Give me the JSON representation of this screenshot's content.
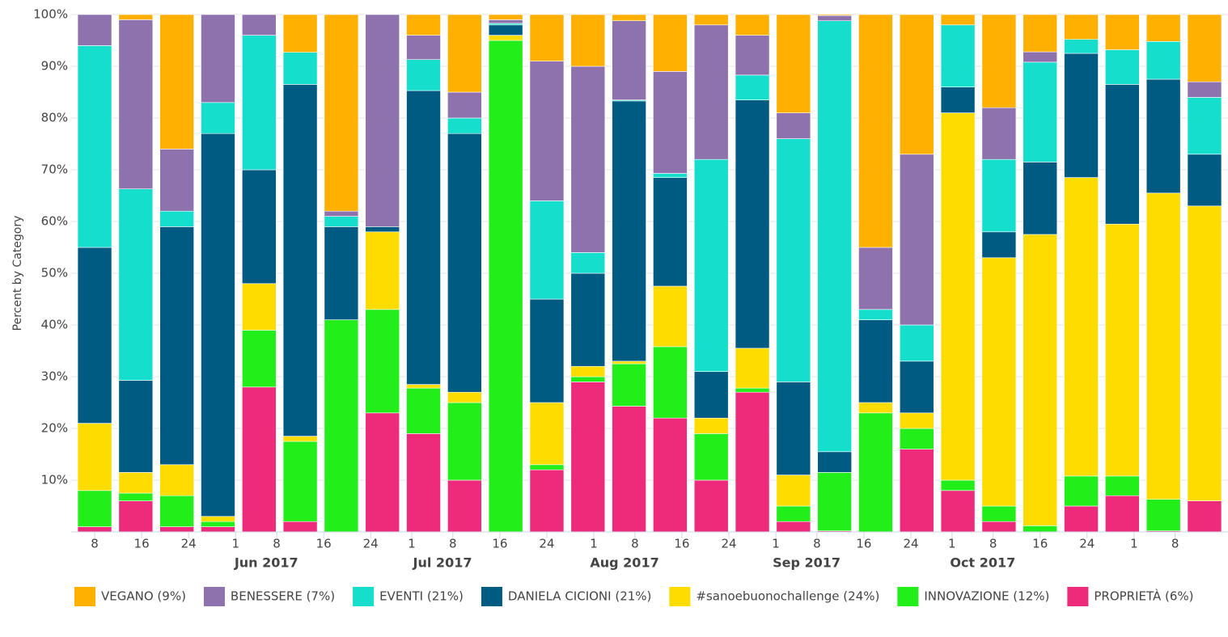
{
  "chart_data": {
    "type": "stacked_bar_percent",
    "y_label": "Percent by Category",
    "x": [
      "2017-05-08",
      "2017-05-15",
      "2017-05-22",
      "2017-05-29",
      "2017-06-05",
      "2017-06-12",
      "2017-06-19",
      "2017-06-26",
      "2017-07-03",
      "2017-07-10",
      "2017-07-17",
      "2017-07-24",
      "2017-07-31",
      "2017-08-07",
      "2017-08-14",
      "2017-08-21",
      "2017-08-28",
      "2017-09-04",
      "2017-09-11",
      "2017-09-18",
      "2017-09-25",
      "2017-10-02",
      "2017-10-09",
      "2017-10-16",
      "2017-10-23",
      "2017-10-30",
      "2017-11-06",
      "2017-11-13"
    ],
    "xlim": [
      "2017-05-04",
      "2017-11-17"
    ],
    "xticks": [
      {
        "value": "2017-05-08",
        "label": "8"
      },
      {
        "value": "2017-05-16",
        "label": "16"
      },
      {
        "value": "2017-05-24",
        "label": "24"
      },
      {
        "value": "2017-06-01",
        "label": "1"
      },
      {
        "value": "2017-06-08",
        "label": "8"
      },
      {
        "value": "2017-06-16",
        "label": "16"
      },
      {
        "value": "2017-06-24",
        "label": "24"
      },
      {
        "value": "2017-07-01",
        "label": "1"
      },
      {
        "value": "2017-07-08",
        "label": "8"
      },
      {
        "value": "2017-07-16",
        "label": "16"
      },
      {
        "value": "2017-07-24",
        "label": "24"
      },
      {
        "value": "2017-08-01",
        "label": "1"
      },
      {
        "value": "2017-08-08",
        "label": "8"
      },
      {
        "value": "2017-08-16",
        "label": "16"
      },
      {
        "value": "2017-08-24",
        "label": "24"
      },
      {
        "value": "2017-09-01",
        "label": "1"
      },
      {
        "value": "2017-09-08",
        "label": "8"
      },
      {
        "value": "2017-09-16",
        "label": "16"
      },
      {
        "value": "2017-09-24",
        "label": "24"
      },
      {
        "value": "2017-10-01",
        "label": "1"
      },
      {
        "value": "2017-10-08",
        "label": "8"
      },
      {
        "value": "2017-10-16",
        "label": "16"
      },
      {
        "value": "2017-10-24",
        "label": "24"
      },
      {
        "value": "2017-11-01",
        "label": "1"
      },
      {
        "value": "2017-11-08",
        "label": "8"
      }
    ],
    "month_ticks": [
      {
        "value": "2017-06-01",
        "label": "Jun 2017"
      },
      {
        "value": "2017-07-01",
        "label": "Jul 2017"
      },
      {
        "value": "2017-08-01",
        "label": "Aug 2017"
      },
      {
        "value": "2017-09-01",
        "label": "Sep 2017"
      },
      {
        "value": "2017-10-01",
        "label": "Oct 2017"
      }
    ],
    "ylim": [
      0,
      100
    ],
    "yticks": [
      {
        "value": 10,
        "label": "10%"
      },
      {
        "value": 20,
        "label": "20%"
      },
      {
        "value": 30,
        "label": "30%"
      },
      {
        "value": 40,
        "label": "40%"
      },
      {
        "value": 50,
        "label": "50%"
      },
      {
        "value": 60,
        "label": "60%"
      },
      {
        "value": 70,
        "label": "70%"
      },
      {
        "value": 80,
        "label": "80%"
      },
      {
        "value": 90,
        "label": "90%"
      },
      {
        "value": 100,
        "label": "100%"
      }
    ],
    "grid": true,
    "legend": "bottom",
    "series": [
      {
        "name": "VEGANO (9%)",
        "color": "#ffb000",
        "values": [
          0,
          1,
          26,
          0,
          0,
          7.3,
          38,
          0,
          4,
          15,
          1,
          9,
          10,
          1.2,
          11,
          2,
          4,
          19,
          0.2,
          45,
          27,
          2,
          18,
          7.2,
          4.8,
          6.8,
          5.2,
          13
        ]
      },
      {
        "name": "BENESSERE (7%)",
        "color": "#8e72ad",
        "values": [
          6,
          32.7,
          12,
          17,
          4,
          0,
          1,
          41,
          4.7,
          5,
          0.7,
          27,
          36,
          15.3,
          19.7,
          26,
          7.7,
          5,
          1,
          12,
          33,
          0,
          10,
          2,
          0,
          0,
          0,
          3
        ]
      },
      {
        "name": "EVENTI (21%)",
        "color": "#15dfcc",
        "values": [
          39,
          37,
          3,
          6,
          26,
          6.2,
          2,
          0,
          6,
          3,
          0.3,
          19,
          4,
          0.2,
          0.8,
          41,
          4.8,
          47,
          83.3,
          2,
          7,
          12,
          14,
          19.3,
          2.7,
          6.7,
          7.3,
          11
        ]
      },
      {
        "name": "DANIELA CICIONI (21%)",
        "color": "#005b82",
        "values": [
          34,
          17.8,
          46,
          74,
          22,
          68,
          18,
          1,
          56.8,
          50,
          2,
          20,
          18,
          50.3,
          21,
          9,
          48,
          18,
          4,
          16,
          10,
          5,
          5,
          14,
          24,
          27,
          22,
          10
        ]
      },
      {
        "name": "#sanoebuonochallenge (24%)",
        "color": "#ffdc00",
        "values": [
          13,
          4,
          6,
          1,
          9,
          1,
          0,
          15,
          0.7,
          2,
          1,
          12,
          2,
          0.5,
          11.7,
          3,
          7.7,
          6,
          0,
          2,
          3,
          71,
          48,
          56.3,
          57.7,
          48.7,
          59.2,
          57
        ]
      },
      {
        "name": "INNOVAZIONE (12%)",
        "color": "#22ee1a",
        "values": [
          7,
          1.5,
          6,
          1,
          11,
          15.5,
          41,
          20,
          8.8,
          15,
          95,
          1,
          1,
          8.2,
          13.8,
          9,
          0.8,
          3,
          11.3,
          23,
          4,
          2,
          3,
          1.2,
          5.8,
          3.8,
          6.1,
          0
        ]
      },
      {
        "name": "PROPRIETÀ (6%)",
        "color": "#ee2a7b",
        "values": [
          1,
          6,
          1,
          1,
          28,
          2,
          0,
          23,
          19,
          10,
          0,
          12,
          29,
          24.3,
          22,
          10,
          27,
          2,
          0.2,
          0,
          16,
          8,
          2,
          0,
          5,
          7,
          0.2,
          6
        ]
      }
    ]
  }
}
